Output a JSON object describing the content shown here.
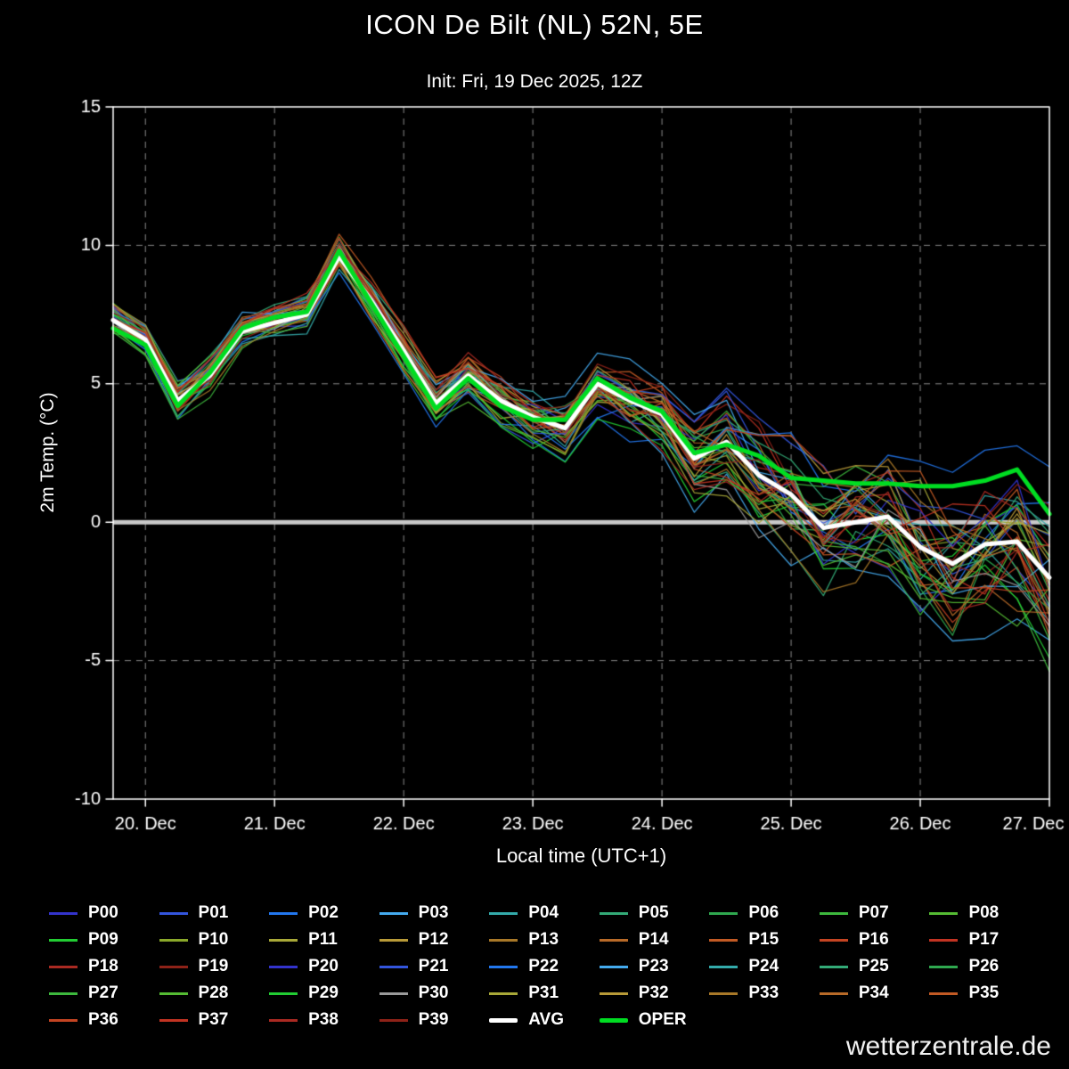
{
  "title": "ICON De Bilt (NL) 52N, 5E",
  "subtitle": "Init: Fri, 19 Dec 2025, 12Z",
  "watermark": "wetterzentrale.de",
  "chart_data": {
    "type": "line",
    "title": "ICON De Bilt (NL) 52N, 5E",
    "subtitle": "Init: Fri, 19 Dec 2025, 12Z",
    "ylabel": "2m Temp. (°C)",
    "xlabel": "Local time (UTC+1)",
    "ylim": [
      -10,
      15
    ],
    "yticks": [
      15,
      10,
      5,
      0,
      -5,
      -10
    ],
    "grid": "dashed",
    "zero_line": true,
    "hour_start": -6,
    "hour_step": 6,
    "n_points": 30,
    "x_tick_hours": [
      0,
      24,
      48,
      72,
      96,
      120,
      144,
      168
    ],
    "x_tick_labels": [
      "20. Dec",
      "21. Dec",
      "22. Dec",
      "23. Dec",
      "24. Dec",
      "25. Dec",
      "26. Dec",
      "27. Dec"
    ],
    "series_avg": {
      "name": "AVG",
      "color": "#ffffff",
      "values": [
        7.3,
        6.6,
        4.4,
        5.3,
        6.9,
        7.2,
        7.5,
        9.6,
        8.0,
        6.2,
        4.3,
        5.3,
        4.4,
        3.8,
        3.4,
        5.0,
        4.4,
        3.9,
        2.3,
        2.9,
        1.7,
        1.0,
        -0.2,
        0.0,
        0.2,
        -0.9,
        -1.5,
        -0.8,
        -0.7,
        -2.0
      ]
    },
    "series_oper": {
      "name": "OPER",
      "color": "#00dd22",
      "values": [
        7.0,
        6.4,
        4.2,
        5.4,
        7.0,
        7.4,
        7.6,
        9.8,
        7.9,
        6.0,
        4.1,
        5.2,
        4.2,
        3.7,
        3.7,
        5.2,
        4.5,
        4.0,
        2.5,
        2.8,
        2.4,
        1.6,
        1.5,
        1.4,
        1.4,
        1.3,
        1.3,
        1.5,
        1.9,
        0.3
      ]
    },
    "ensemble": {
      "labels": [
        "P00",
        "P01",
        "P02",
        "P03",
        "P04",
        "P05",
        "P06",
        "P07",
        "P08",
        "P09",
        "P10",
        "P11",
        "P12",
        "P13",
        "P14",
        "P15",
        "P16",
        "P17",
        "P18",
        "P19",
        "P20",
        "P21",
        "P22",
        "P23",
        "P24",
        "P25",
        "P26",
        "P27",
        "P28",
        "P29",
        "P30",
        "P31",
        "P32",
        "P33",
        "P34",
        "P35",
        "P36",
        "P37",
        "P38",
        "P39"
      ],
      "colors": [
        "#3333cc",
        "#3355dd",
        "#2277ee",
        "#44aaee",
        "#33aaaa",
        "#33aa77",
        "#2fa84f",
        "#3db83d",
        "#55bb33",
        "#22cc33",
        "#8aa82a",
        "#a8a838",
        "#b89a38",
        "#a87828",
        "#b86a28",
        "#c25a24",
        "#c44422",
        "#c23322",
        "#aa2a22",
        "#8e2218",
        "#3333cc",
        "#3355dd",
        "#2277ee",
        "#44aaee",
        "#33aaaa",
        "#33aa77",
        "#2fa84f",
        "#3db83d",
        "#55bb33",
        "#22cc33",
        "#9a9a9a",
        "#a8a838",
        "#b89a38",
        "#a87828",
        "#b86a28",
        "#c25a24",
        "#c44422",
        "#c23322",
        "#aa2a22",
        "#8e2218"
      ],
      "spread": [
        0.7,
        0.8,
        0.9,
        0.8,
        0.7,
        0.8,
        0.8,
        0.9,
        1.0,
        1.0,
        1.0,
        1.1,
        1.2,
        1.4,
        1.5,
        1.4,
        1.5,
        1.8,
        2.0,
        2.2,
        2.4,
        2.6,
        2.8,
        2.9,
        3.0,
        3.2,
        3.3,
        3.4,
        3.5,
        4.0
      ]
    }
  }
}
